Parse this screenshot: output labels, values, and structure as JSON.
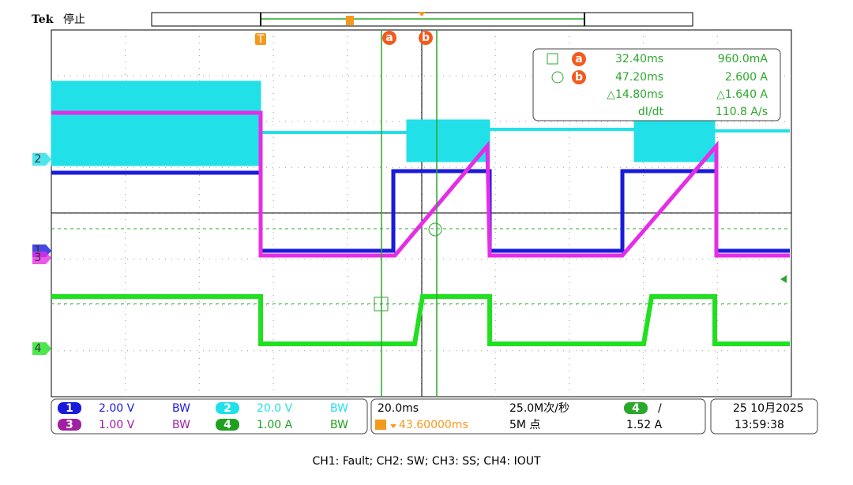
{
  "header": {
    "brand": "Tek",
    "status": "停止",
    "trigger_marker": "T"
  },
  "cursor_labels": {
    "a": "a",
    "b": "b"
  },
  "readout": {
    "rows": [
      {
        "cursor": "a",
        "time": "32.40ms",
        "value": "960.0mA"
      },
      {
        "cursor": "b",
        "time": "47.20ms",
        "value": "2.600 A"
      },
      {
        "time": "△14.80ms",
        "value": "△1.640 A"
      },
      {
        "time": "dI/dt",
        "value": "110.8 A/s"
      }
    ]
  },
  "channel_markers": [
    "2",
    "1",
    "3",
    "4"
  ],
  "channels": [
    {
      "number": "1",
      "scale": "2.00 V",
      "bw": "BW"
    },
    {
      "number": "2",
      "scale": "20.0 V",
      "bw": "BW"
    },
    {
      "number": "3",
      "scale": "1.00 V",
      "bw": "BW"
    },
    {
      "number": "4",
      "scale": "1.00 A",
      "bw": "BW"
    }
  ],
  "timebase": {
    "scale": "20.0ms",
    "sample_rate": "25.0M次/秒",
    "position": "43.60000ms",
    "record": "5M 点"
  },
  "trigger": {
    "channel": "4",
    "slope": "/",
    "level": "1.52 A"
  },
  "datetime": {
    "date": "25 10月2025",
    "time": "13:59:38"
  },
  "caption": "CH1: Fault; CH2: SW; CH3: SS; CH4: IOUT"
}
